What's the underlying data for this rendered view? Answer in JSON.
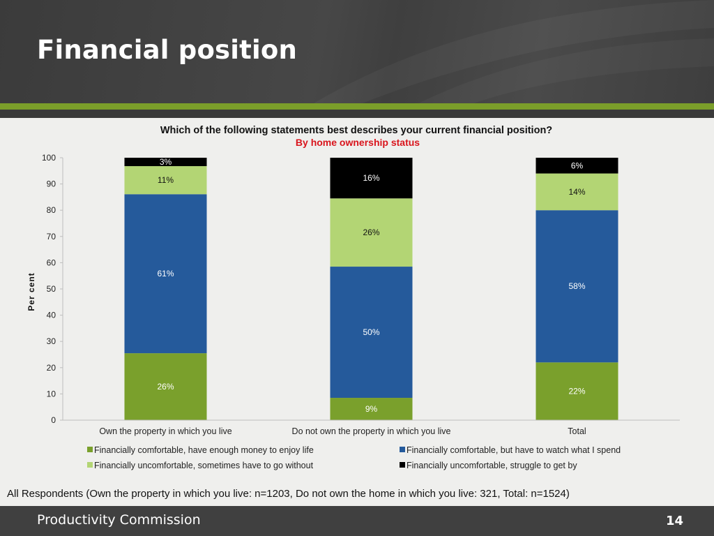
{
  "slide": {
    "title": "Financial position",
    "footnote": "All Respondents (Own the property in which you live: n=1203, Do not own the home in which you live: 321, Total: n=1524)",
    "footer_org": "Productivity Commission",
    "page_number": "14",
    "colors": {
      "header_bg": "#444444",
      "accent_green": "#7b9e2a",
      "footer_bg": "#404040"
    }
  },
  "chart_data": {
    "type": "bar",
    "stacked": true,
    "title": "Which of the following statements best describes your current financial position?",
    "subtitle": "By home ownership status",
    "subtitle_color": "#d9141c",
    "xlabel": "",
    "ylabel": "Per cent",
    "ylim": [
      0,
      100
    ],
    "yticks": [
      "0",
      "10",
      "20",
      "30",
      "40",
      "50",
      "60",
      "70",
      "80",
      "90",
      "100"
    ],
    "grid": false,
    "legend_position": "bottom",
    "categories": [
      "Own the property in which you live",
      "Do not own the property in which you live",
      "Total"
    ],
    "series": [
      {
        "name": "Financially comfortable, have enough money to enjoy life",
        "color": "#7aa02c",
        "values": [
          25.5,
          8.5,
          22
        ],
        "labels": [
          "26%",
          "9%",
          "22%"
        ],
        "label_color": "#ffffff"
      },
      {
        "name": "Financially comfortable, but have to watch what I spend",
        "color": "#255a9b",
        "values": [
          60.6,
          50,
          58
        ],
        "labels": [
          "61%",
          "50%",
          "58%"
        ],
        "label_color": "#ffffff"
      },
      {
        "name": "Financially uncomfortable, sometimes have to go without",
        "color": "#b3d574",
        "values": [
          10.7,
          26,
          14
        ],
        "labels": [
          "11%",
          "26%",
          "14%"
        ],
        "label_color": "#111111"
      },
      {
        "name": "Financially uncomfortable, struggle to get by",
        "color": "#000000",
        "values": [
          3.2,
          15.5,
          6
        ],
        "labels": [
          "3%",
          "16%",
          "6%"
        ],
        "label_color": "#ffffff"
      }
    ]
  }
}
